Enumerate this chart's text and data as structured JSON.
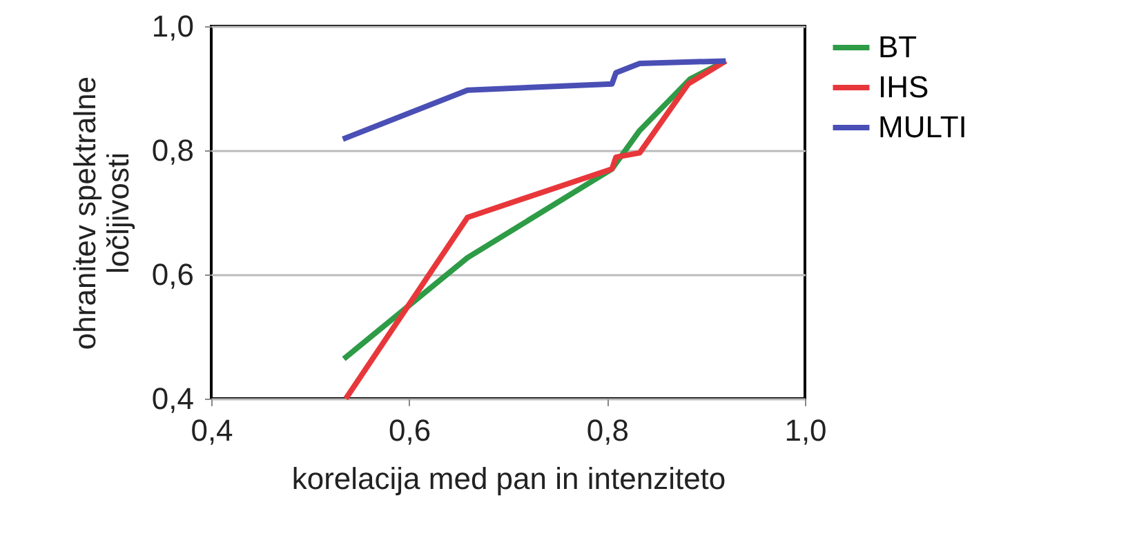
{
  "chart_data": {
    "type": "line",
    "xlabel": "korelacija med pan in intenziteto",
    "ylabel": "ohranitev spektralne ločljivosti",
    "xlim": [
      0.4,
      1.0
    ],
    "ylim": [
      0.4,
      1.0
    ],
    "xticks": [
      {
        "value": 0.4,
        "label": "0,4"
      },
      {
        "value": 0.6,
        "label": "0,6"
      },
      {
        "value": 0.8,
        "label": "0,8"
      },
      {
        "value": 1.0,
        "label": "1,0"
      }
    ],
    "yticks": [
      {
        "value": 0.4,
        "label": "0,4"
      },
      {
        "value": 0.6,
        "label": "0,6"
      },
      {
        "value": 0.8,
        "label": "0,8"
      },
      {
        "value": 1.0,
        "label": "1,0"
      }
    ],
    "grid": "y",
    "legend": "right",
    "line_style": "solid",
    "marker": "none",
    "series": [
      {
        "name": "BT",
        "color": "#2e9b47",
        "x": [
          0.534,
          0.659,
          0.805,
          0.833,
          0.884,
          0.92
        ],
        "values": [
          0.464,
          0.627,
          0.77,
          0.832,
          0.915,
          0.944
        ]
      },
      {
        "name": "IHS",
        "color": "#e8373a",
        "x": [
          0.536,
          0.659,
          0.805,
          0.809,
          0.833,
          0.882,
          0.92
        ],
        "values": [
          0.4,
          0.692,
          0.77,
          0.789,
          0.796,
          0.907,
          0.944
        ]
      },
      {
        "name": "MULTI",
        "color": "#4a4fb5",
        "x": [
          0.533,
          0.659,
          0.805,
          0.809,
          0.833,
          0.92
        ],
        "values": [
          0.818,
          0.897,
          0.907,
          0.925,
          0.94,
          0.944
        ]
      }
    ]
  }
}
